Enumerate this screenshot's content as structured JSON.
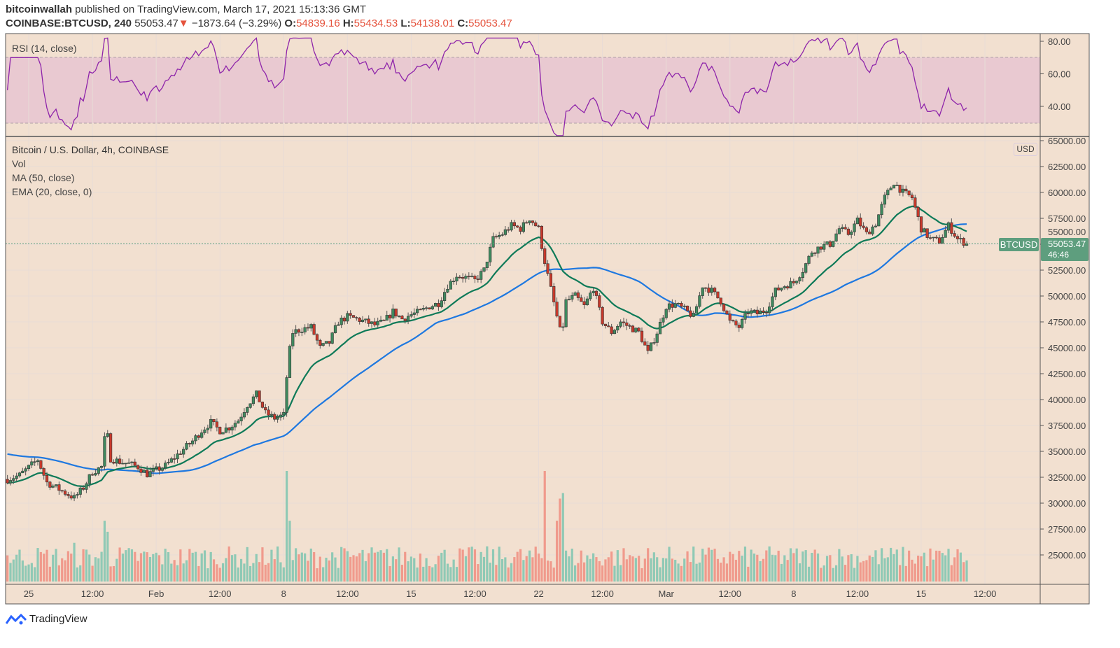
{
  "header": {
    "author": "bitcoinwallah",
    "published": " published on TradingView.com, March 17, 2021 15:13:36 GMT",
    "symbol": "COINBASE:BTCUSD, 240",
    "last": "55053.47",
    "change": "−1873.64 (−3.29%)",
    "o_label": "O:",
    "o": "54839.16",
    "h_label": "H:",
    "h": "55434.53",
    "l_label": "L:",
    "l": "54138.01",
    "c_label": "C:",
    "c": "55053.47"
  },
  "legend": {
    "rsi": "RSI (14, close)",
    "title": "Bitcoin / U.S. Dollar, 4h, COINBASE",
    "vol": "Vol",
    "ma": "MA (50, close)",
    "ema": "EMA (20, close, 0)"
  },
  "price_tag": {
    "symbol": "BTCUSD",
    "price": "55053.47",
    "countdown": "46:46",
    "currency": "USD"
  },
  "footer": {
    "brand": "TradingView"
  },
  "colors": {
    "background": "#f2e0d0",
    "up": "#3f8a5f",
    "down": "#c8392b",
    "vol_up": "#8fc9b5",
    "vol_down": "#f09a8c",
    "ema": "#0e7a58",
    "ma": "#1e78e0",
    "rsi": "#8e24aa",
    "rsi_band": "#e8c6d0",
    "tag": "#5e9e7e"
  },
  "chart_data": {
    "type": "candlestick",
    "interval": "4h",
    "price_ticks": [
      "65000.00",
      "62500.00",
      "60000.00",
      "57500.00",
      "55000.00",
      "52500.00",
      "50000.00",
      "47500.00",
      "45000.00",
      "42500.00",
      "40000.00",
      "37500.00",
      "35000.00",
      "32500.00",
      "30000.00",
      "27500.00",
      "25000.00"
    ],
    "price_range": [
      22500,
      65000
    ],
    "rsi_ticks": [
      "80.00",
      "60.00",
      "40.00"
    ],
    "rsi_band": [
      30,
      70
    ],
    "time_ticks": [
      {
        "label": "25",
        "t": "2021-01-25T00:00"
      },
      {
        "label": "12:00",
        "t": "2021-01-28T12:00"
      },
      {
        "label": "Feb",
        "t": "2021-02-01T00:00"
      },
      {
        "label": "12:00",
        "t": "2021-02-04T12:00"
      },
      {
        "label": "8",
        "t": "2021-02-08T00:00"
      },
      {
        "label": "12:00",
        "t": "2021-02-11T12:00"
      },
      {
        "label": "15",
        "t": "2021-02-15T00:00"
      },
      {
        "label": "12:00",
        "t": "2021-02-18T12:00"
      },
      {
        "label": "22",
        "t": "2021-02-22T00:00"
      },
      {
        "label": "12:00",
        "t": "2021-02-25T12:00"
      },
      {
        "label": "Mar",
        "t": "2021-03-01T00:00"
      },
      {
        "label": "12:00",
        "t": "2021-03-04T12:00"
      },
      {
        "label": "8",
        "t": "2021-03-08T00:00"
      },
      {
        "label": "12:00",
        "t": "2021-03-11T12:00"
      },
      {
        "label": "15",
        "t": "2021-03-15T00:00"
      },
      {
        "label": "12:00",
        "t": "2021-03-18T12:00"
      }
    ],
    "close_path": [
      [
        "2021-01-23T20:00",
        32300
      ],
      [
        "2021-01-24T12:00",
        32700
      ],
      [
        "2021-01-25T12:00",
        34200
      ],
      [
        "2021-01-26T00:00",
        32000
      ],
      [
        "2021-01-26T12:00",
        31500
      ],
      [
        "2021-01-27T12:00",
        30500
      ],
      [
        "2021-01-28T00:00",
        31500
      ],
      [
        "2021-01-28T12:00",
        33000
      ],
      [
        "2021-01-29T00:00",
        33500
      ],
      [
        "2021-01-29T06:00",
        37500
      ],
      [
        "2021-01-29T12:00",
        34300
      ],
      [
        "2021-01-30T00:00",
        34000
      ],
      [
        "2021-01-30T12:00",
        33800
      ],
      [
        "2021-01-31T00:00",
        33500
      ],
      [
        "2021-01-31T12:00",
        32800
      ],
      [
        "2021-02-01T00:00",
        33200
      ],
      [
        "2021-02-01T12:00",
        33600
      ],
      [
        "2021-02-02T12:00",
        35200
      ],
      [
        "2021-02-03T00:00",
        36000
      ],
      [
        "2021-02-03T12:00",
        37000
      ],
      [
        "2021-02-04T00:00",
        37800
      ],
      [
        "2021-02-04T12:00",
        37000
      ],
      [
        "2021-02-05T00:00",
        37300
      ],
      [
        "2021-02-05T12:00",
        38000
      ],
      [
        "2021-02-06T00:00",
        39500
      ],
      [
        "2021-02-06T12:00",
        40500
      ],
      [
        "2021-02-07T00:00",
        38700
      ],
      [
        "2021-02-07T12:00",
        38200
      ],
      [
        "2021-02-08T00:00",
        38500
      ],
      [
        "2021-02-08T06:00",
        44000
      ],
      [
        "2021-02-08T12:00",
        46500
      ],
      [
        "2021-02-09T00:00",
        46800
      ],
      [
        "2021-02-09T12:00",
        47000
      ],
      [
        "2021-02-10T00:00",
        45000
      ],
      [
        "2021-02-10T12:00",
        45500
      ],
      [
        "2021-02-11T00:00",
        47500
      ],
      [
        "2021-02-11T12:00",
        48000
      ],
      [
        "2021-02-12T00:00",
        47800
      ],
      [
        "2021-02-12T12:00",
        47500
      ],
      [
        "2021-02-13T00:00",
        47200
      ],
      [
        "2021-02-13T12:00",
        47500
      ],
      [
        "2021-02-14T00:00",
        48500
      ],
      [
        "2021-02-14T12:00",
        47800
      ],
      [
        "2021-02-15T00:00",
        48200
      ],
      [
        "2021-02-15T12:00",
        48500
      ],
      [
        "2021-02-16T00:00",
        49000
      ],
      [
        "2021-02-16T12:00",
        49300
      ],
      [
        "2021-02-17T00:00",
        51000
      ],
      [
        "2021-02-17T12:00",
        52000
      ],
      [
        "2021-02-18T00:00",
        51800
      ],
      [
        "2021-02-18T12:00",
        51500
      ],
      [
        "2021-02-19T00:00",
        52500
      ],
      [
        "2021-02-19T12:00",
        55500
      ],
      [
        "2021-02-20T00:00",
        56000
      ],
      [
        "2021-02-20T12:00",
        56800
      ],
      [
        "2021-02-21T00:00",
        56500
      ],
      [
        "2021-02-21T12:00",
        57500
      ],
      [
        "2021-02-22T00:00",
        56500
      ],
      [
        "2021-02-22T06:00",
        54000
      ],
      [
        "2021-02-22T12:00",
        52000
      ],
      [
        "2021-02-23T00:00",
        48000
      ],
      [
        "2021-02-23T06:00",
        46000
      ],
      [
        "2021-02-23T12:00",
        49500
      ],
      [
        "2021-02-24T00:00",
        50000
      ],
      [
        "2021-02-24T12:00",
        49000
      ],
      [
        "2021-02-25T00:00",
        50800
      ],
      [
        "2021-02-25T12:00",
        47500
      ],
      [
        "2021-02-26T00:00",
        46500
      ],
      [
        "2021-02-26T12:00",
        47500
      ],
      [
        "2021-02-27T00:00",
        47000
      ],
      [
        "2021-02-27T12:00",
        46500
      ],
      [
        "2021-02-28T00:00",
        44500
      ],
      [
        "2021-02-28T12:00",
        46500
      ],
      [
        "2021-03-01T00:00",
        49000
      ],
      [
        "2021-03-01T12:00",
        49200
      ],
      [
        "2021-03-02T00:00",
        48700
      ],
      [
        "2021-03-02T12:00",
        48000
      ],
      [
        "2021-03-03T00:00",
        51000
      ],
      [
        "2021-03-03T12:00",
        50500
      ],
      [
        "2021-03-04T00:00",
        49500
      ],
      [
        "2021-03-04T12:00",
        47500
      ],
      [
        "2021-03-05T00:00",
        47000
      ],
      [
        "2021-03-05T12:00",
        48500
      ],
      [
        "2021-03-06T00:00",
        48300
      ],
      [
        "2021-03-06T12:00",
        48700
      ],
      [
        "2021-03-07T00:00",
        50500
      ],
      [
        "2021-03-07T12:00",
        51000
      ],
      [
        "2021-03-08T00:00",
        51300
      ],
      [
        "2021-03-08T12:00",
        52500
      ],
      [
        "2021-03-09T00:00",
        54300
      ],
      [
        "2021-03-09T12:00",
        54800
      ],
      [
        "2021-03-10T00:00",
        55000
      ],
      [
        "2021-03-10T12:00",
        56500
      ],
      [
        "2021-03-11T00:00",
        56000
      ],
      [
        "2021-03-11T12:00",
        57300
      ],
      [
        "2021-03-12T00:00",
        56000
      ],
      [
        "2021-03-12T12:00",
        57000
      ],
      [
        "2021-03-13T00:00",
        59500
      ],
      [
        "2021-03-13T12:00",
        61000
      ],
      [
        "2021-03-14T00:00",
        60000
      ],
      [
        "2021-03-14T12:00",
        59500
      ],
      [
        "2021-03-15T00:00",
        56500
      ],
      [
        "2021-03-15T12:00",
        55500
      ],
      [
        "2021-03-16T00:00",
        55300
      ],
      [
        "2021-03-16T12:00",
        56800
      ],
      [
        "2021-03-17T00:00",
        55500
      ],
      [
        "2021-03-17T12:00",
        55053.47
      ]
    ],
    "volume_spikes": [
      [
        "2021-01-27T12:00",
        0.35
      ],
      [
        "2021-01-29T04:00",
        0.55
      ],
      [
        "2021-01-29T08:00",
        0.45
      ],
      [
        "2021-02-08T04:00",
        1.0
      ],
      [
        "2021-02-08T08:00",
        0.55
      ],
      [
        "2021-02-22T08:00",
        1.0
      ],
      [
        "2021-02-23T04:00",
        0.75
      ],
      [
        "2021-02-23T08:00",
        0.8
      ],
      [
        "2021-02-23T00:00",
        0.55
      ]
    ],
    "ema_period": 20,
    "ma_period": 50,
    "rsi_period": 14
  }
}
